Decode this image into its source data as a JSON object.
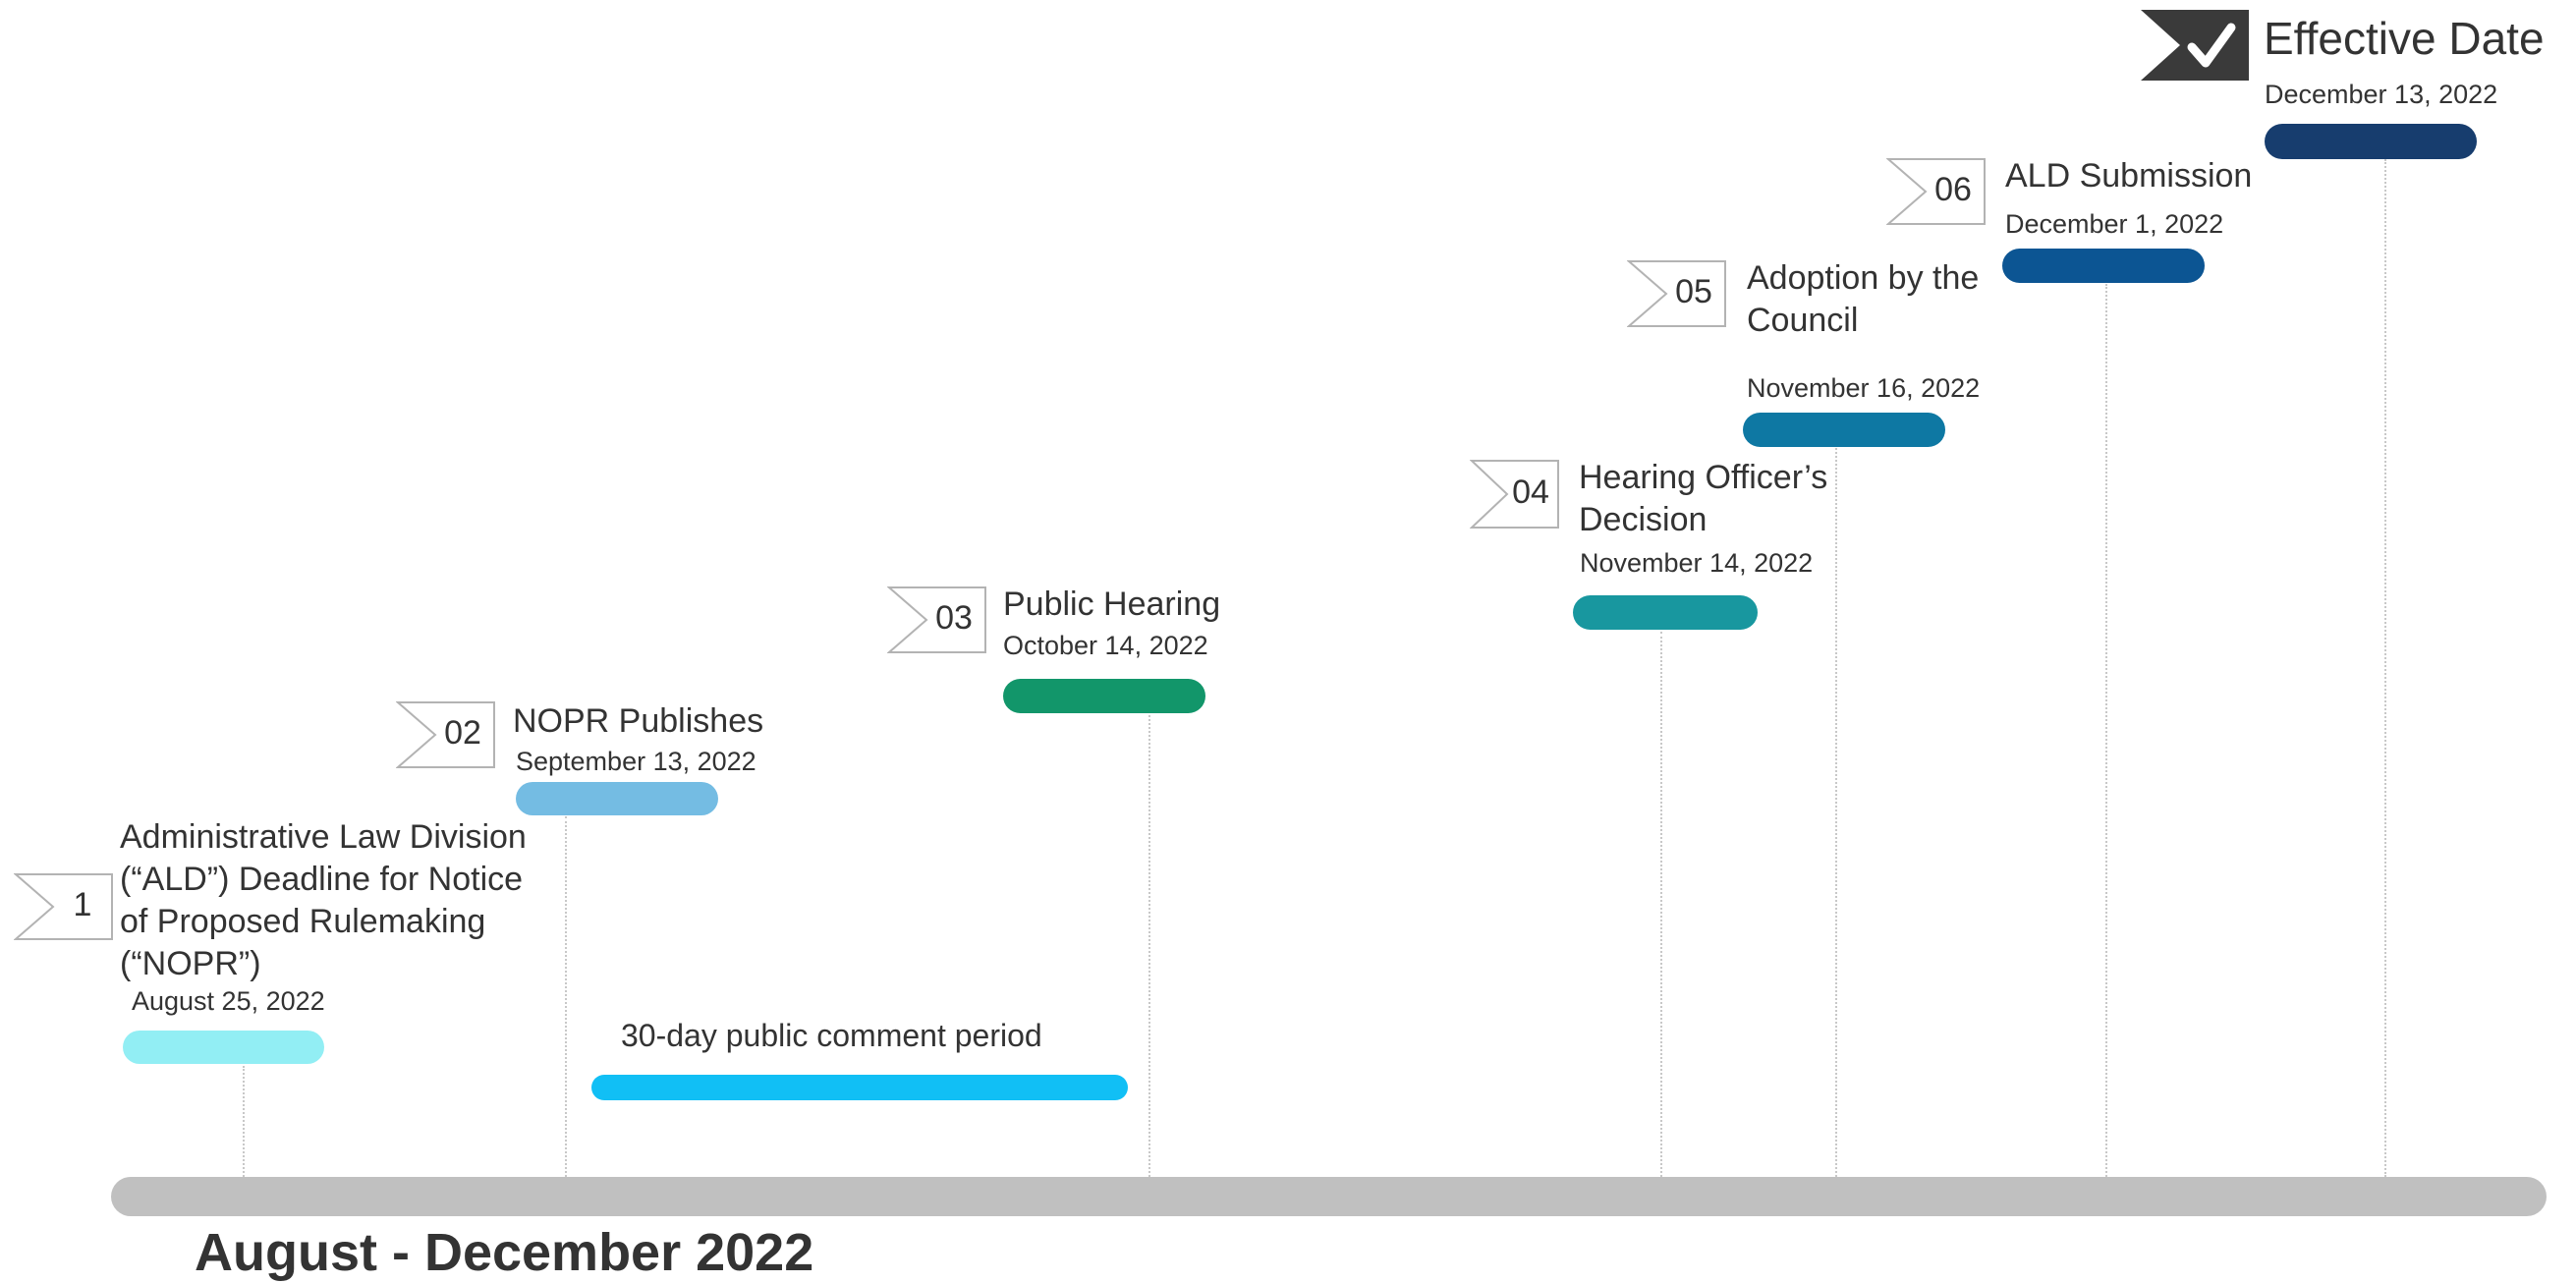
{
  "axis": {
    "label": "August - December 2022"
  },
  "comment_period": {
    "label": "30-day public comment period"
  },
  "milestones": [
    {
      "number": "1",
      "title": "Administrative Law Division (“ALD”) Deadline for Notice of Proposed Rulemaking (“NOPR”)",
      "date": "August 25, 2022",
      "color": "#92eef4"
    },
    {
      "number": "02",
      "title": "NOPR Publishes",
      "date": "September 13, 2022",
      "color": "#74bce3"
    },
    {
      "number": "03",
      "title": "Public Hearing",
      "date": "October 14, 2022",
      "color": "#12966a"
    },
    {
      "number": "04",
      "title": "Hearing Officer’s Decision",
      "date": "November 14, 2022",
      "color": "#18979f"
    },
    {
      "number": "05",
      "title": "Adoption by the Council",
      "date": "November 16, 2022",
      "color": "#0e78a3"
    },
    {
      "number": "06",
      "title": "ALD Submission",
      "date": "December 1, 2022",
      "color": "#0c5593"
    },
    {
      "number": "",
      "title": "Effective Date",
      "date": "December 13, 2022",
      "color": "#173d6e"
    }
  ],
  "colors": {
    "comment_bar": "#11bff5",
    "axis_bar": "#c0c0c0",
    "check_flag": "#3a3a3a"
  }
}
